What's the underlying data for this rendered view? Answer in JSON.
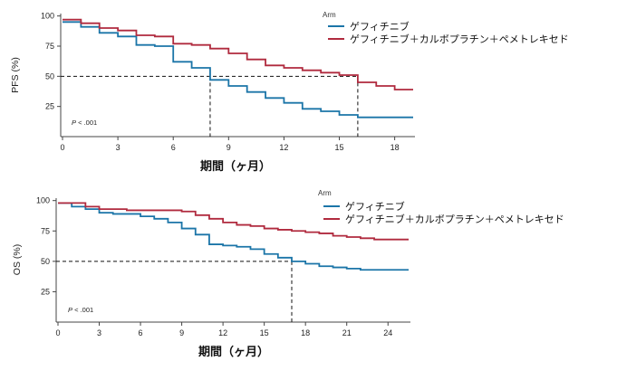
{
  "chart_data": [
    {
      "type": "line",
      "subtype": "kaplan-meier",
      "ylabel": "PFS (%)",
      "xlabel": "期間（ヶ月）",
      "xticks": [
        0,
        3,
        6,
        9,
        12,
        15,
        18
      ],
      "yticks": [
        25,
        50,
        75,
        100
      ],
      "xlim": [
        0,
        19
      ],
      "ylim": [
        0,
        102
      ],
      "p_value": ".001",
      "p_prefix": "P",
      "legend_title": "Arm",
      "median_reference": {
        "y": 50,
        "x_values": [
          8,
          16
        ]
      },
      "series": [
        {
          "name": "ゲフィチニブ",
          "color": "#1b75a8",
          "steps": [
            [
              0,
              95
            ],
            [
              1,
              91
            ],
            [
              2,
              86
            ],
            [
              3,
              83
            ],
            [
              4,
              76
            ],
            [
              5,
              75
            ],
            [
              6,
              62
            ],
            [
              7,
              57
            ],
            [
              8,
              47
            ],
            [
              9,
              42
            ],
            [
              10,
              37
            ],
            [
              11,
              32
            ],
            [
              12,
              28
            ],
            [
              13,
              23
            ],
            [
              14,
              21
            ],
            [
              15,
              18
            ],
            [
              16,
              16
            ],
            [
              19,
              16
            ]
          ]
        },
        {
          "name": "ゲフィチニブ＋カルボプラチン＋ペメトレキセド",
          "color": "#b02a3e",
          "steps": [
            [
              0,
              97
            ],
            [
              1,
              94
            ],
            [
              2,
              90
            ],
            [
              3,
              88
            ],
            [
              4,
              84
            ],
            [
              5,
              83
            ],
            [
              6,
              77
            ],
            [
              7,
              76
            ],
            [
              8,
              73
            ],
            [
              9,
              69
            ],
            [
              10,
              64
            ],
            [
              11,
              59
            ],
            [
              12,
              57
            ],
            [
              13,
              55
            ],
            [
              14,
              53
            ],
            [
              15,
              51
            ],
            [
              16,
              45
            ],
            [
              17,
              42
            ],
            [
              18,
              39
            ],
            [
              19,
              39
            ]
          ]
        }
      ]
    },
    {
      "type": "line",
      "subtype": "kaplan-meier",
      "ylabel": "OS (%)",
      "xlabel": "期間（ヶ月）",
      "xticks": [
        0,
        3,
        6,
        9,
        12,
        15,
        18,
        21,
        24
      ],
      "yticks": [
        25,
        50,
        75,
        100
      ],
      "xlim": [
        0,
        25.5
      ],
      "ylim": [
        0,
        102
      ],
      "p_value": ".001",
      "p_prefix": "P",
      "legend_title": "Arm",
      "median_reference": {
        "y": 50,
        "x_values": [
          17
        ]
      },
      "series": [
        {
          "name": "ゲフィチニブ",
          "color": "#1b75a8",
          "steps": [
            [
              0,
              98
            ],
            [
              1,
              95
            ],
            [
              2,
              93
            ],
            [
              3,
              90
            ],
            [
              4,
              89
            ],
            [
              6,
              87
            ],
            [
              7,
              85
            ],
            [
              8,
              82
            ],
            [
              9,
              77
            ],
            [
              10,
              72
            ],
            [
              11,
              64
            ],
            [
              12,
              63
            ],
            [
              13,
              62
            ],
            [
              14,
              60
            ],
            [
              15,
              56
            ],
            [
              16,
              53
            ],
            [
              17,
              50
            ],
            [
              18,
              48
            ],
            [
              19,
              46
            ],
            [
              20,
              45
            ],
            [
              21,
              44
            ],
            [
              22,
              43
            ],
            [
              25.5,
              43
            ]
          ]
        },
        {
          "name": "ゲフィチニブ＋カルボプラチン＋ペメトレキセド",
          "color": "#b02a3e",
          "steps": [
            [
              0,
              98
            ],
            [
              2,
              95
            ],
            [
              3,
              93
            ],
            [
              5,
              92
            ],
            [
              9,
              91
            ],
            [
              10,
              88
            ],
            [
              11,
              85
            ],
            [
              12,
              82
            ],
            [
              13,
              80
            ],
            [
              14,
              79
            ],
            [
              15,
              77
            ],
            [
              16,
              76
            ],
            [
              17,
              75
            ],
            [
              18,
              74
            ],
            [
              19,
              73
            ],
            [
              20,
              71
            ],
            [
              21,
              70
            ],
            [
              22,
              69
            ],
            [
              23,
              68
            ],
            [
              25.5,
              68
            ]
          ]
        }
      ]
    }
  ]
}
